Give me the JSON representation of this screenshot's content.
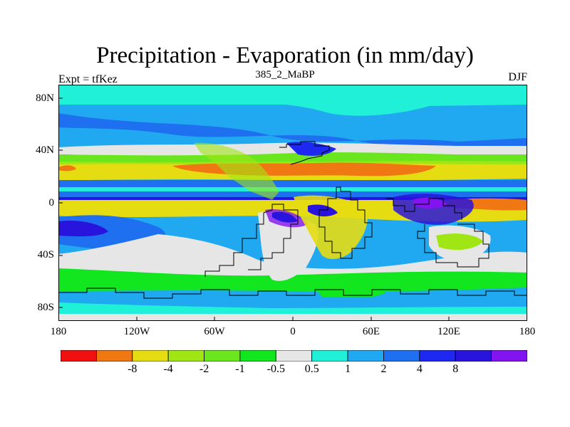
{
  "title": "Precipitation - Evaporation (in mm/day)",
  "subtitle": "385_2_MaBP",
  "left_label": "Expt = tfKez",
  "right_label": "DJF",
  "y_ticks": [
    "80N",
    "40N",
    "0",
    "40S",
    "80S"
  ],
  "x_ticks": [
    "180",
    "120W",
    "60W",
    "0",
    "60E",
    "120E",
    "180"
  ],
  "colorbar": {
    "colors": [
      "#f01010",
      "#f07812",
      "#e6dc12",
      "#a0e614",
      "#6ae61e",
      "#12e61e",
      "#e6e6e6",
      "#20f0d8",
      "#20a8f0",
      "#1e70f0",
      "#1e28f0",
      "#2814dc",
      "#8214f0"
    ],
    "labels": [
      "-8",
      "-4",
      "-2",
      "-1",
      "-0.5",
      "0.5",
      "1",
      "2",
      "4",
      "8"
    ]
  },
  "map_colors": {
    "ocean": "#20a8f0",
    "arctic": "#20f0d8",
    "land": "#e6e6e6",
    "desert": "#f07812",
    "dry": "#e6dc12",
    "semi": "#a0e614",
    "moist": "#12e61e",
    "wet": "#1e70f0",
    "verywet": "#2814dc",
    "wettest": "#8214f0"
  }
}
